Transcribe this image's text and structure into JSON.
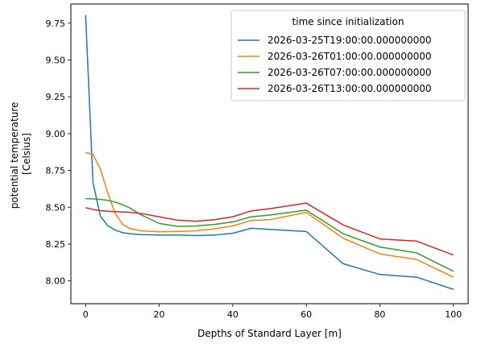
{
  "chart_data": {
    "type": "line",
    "title": "",
    "xlabel": "Depths of Standard Layer [m]",
    "ylabel_lines": [
      "potential temperature",
      "[Celsius]"
    ],
    "xlim": [
      -4,
      104
    ],
    "ylim": [
      7.845,
      9.88
    ],
    "xticks": [
      0,
      20,
      40,
      60,
      80,
      100
    ],
    "yticks": [
      8.0,
      8.25,
      8.5,
      8.75,
      9.0,
      9.25,
      9.5,
      9.75
    ],
    "ytick_labels": [
      "8.00",
      "8.25",
      "8.50",
      "8.75",
      "9.00",
      "9.25",
      "9.50",
      "9.75"
    ],
    "grid": false,
    "legend": {
      "title": "time since initialization",
      "placement": "top-right"
    },
    "x": [
      0,
      2,
      4,
      6,
      8,
      10,
      12,
      15,
      20,
      25,
      30,
      35,
      40,
      45,
      50,
      60,
      70,
      80,
      90,
      100
    ],
    "series": [
      {
        "name": "2026-03-25T19:00:00.000000000",
        "color": "#1f77b4",
        "values": [
          9.805,
          8.67,
          8.44,
          8.375,
          8.345,
          8.328,
          8.32,
          8.314,
          8.311,
          8.311,
          8.308,
          8.311,
          8.323,
          8.357,
          8.35,
          8.335,
          8.117,
          8.043,
          8.025,
          7.942
        ]
      },
      {
        "name": "2026-03-26T01:00:00.000000000",
        "color": "#ff7f0e",
        "values": [
          8.872,
          8.86,
          8.76,
          8.6,
          8.46,
          8.385,
          8.355,
          8.34,
          8.333,
          8.335,
          8.34,
          8.353,
          8.373,
          8.41,
          8.415,
          8.465,
          8.29,
          8.183,
          8.145,
          8.025
        ]
      },
      {
        "name": "2026-03-26T07:00:00.000000000",
        "color": "#2ca02c",
        "values": [
          8.558,
          8.557,
          8.553,
          8.547,
          8.535,
          8.518,
          8.495,
          8.45,
          8.39,
          8.37,
          8.373,
          8.383,
          8.4,
          8.435,
          8.447,
          8.48,
          8.32,
          8.23,
          8.19,
          8.065
        ]
      },
      {
        "name": "2026-03-26T13:00:00.000000000",
        "color": "#d62728",
        "values": [
          8.497,
          8.485,
          8.477,
          8.473,
          8.47,
          8.468,
          8.465,
          8.458,
          8.435,
          8.412,
          8.405,
          8.415,
          8.435,
          8.475,
          8.49,
          8.528,
          8.38,
          8.285,
          8.27,
          8.175
        ]
      }
    ]
  }
}
